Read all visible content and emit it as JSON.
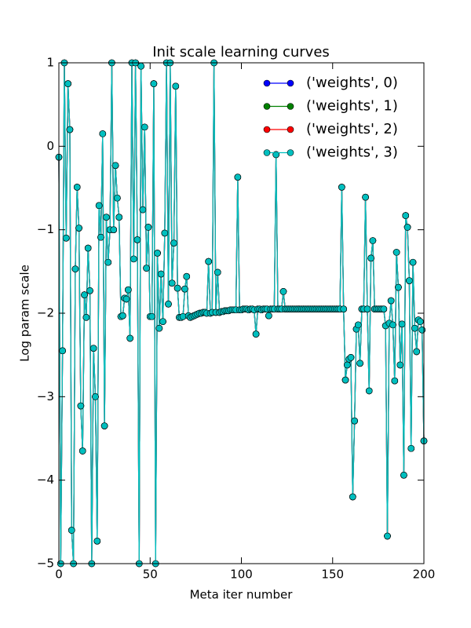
{
  "chart_data": {
    "type": "line",
    "title": "Init scale learning curves",
    "x_label": "Meta iter number",
    "y_label": "Log param scale",
    "xlim": [
      0,
      200
    ],
    "ylim": [
      -5,
      1
    ],
    "xticks": [
      0,
      50,
      100,
      150,
      200
    ],
    "yticks": [
      {
        "value": -5,
        "label": "−5"
      },
      {
        "value": -4,
        "label": "−4"
      },
      {
        "value": -3,
        "label": "−3"
      },
      {
        "value": -2,
        "label": "−2"
      },
      {
        "value": -1,
        "label": "−1"
      },
      0,
      1
    ],
    "grid": false,
    "legend": "upper right",
    "x": [
      0,
      1,
      2,
      3,
      4,
      5,
      6,
      7,
      8,
      9,
      10,
      11,
      12,
      13,
      14,
      15,
      16,
      17,
      18,
      19,
      20,
      21,
      22,
      23,
      24,
      25,
      26,
      27,
      28,
      29,
      30,
      31,
      32,
      33,
      34,
      35,
      36,
      37,
      38,
      39,
      40,
      41,
      42,
      43,
      44,
      45,
      46,
      47,
      48,
      49,
      50,
      51,
      52,
      53,
      54,
      55,
      56,
      57,
      58,
      59,
      60,
      61,
      62,
      63,
      64,
      65,
      66,
      67,
      68,
      69,
      70,
      71,
      72,
      73,
      74,
      75,
      76,
      77,
      78,
      79,
      80,
      81,
      82,
      83,
      84,
      85,
      86,
      87,
      88,
      89,
      90,
      91,
      92,
      93,
      94,
      95,
      96,
      97,
      98,
      99,
      100,
      101,
      102,
      103,
      104,
      105,
      106,
      107,
      108,
      109,
      110,
      111,
      112,
      113,
      114,
      115,
      116,
      117,
      118,
      119,
      120,
      121,
      122,
      123,
      124,
      125,
      126,
      127,
      128,
      129,
      130,
      131,
      132,
      133,
      134,
      135,
      136,
      137,
      138,
      139,
      140,
      141,
      142,
      143,
      144,
      145,
      146,
      147,
      148,
      149,
      150,
      151,
      152,
      153,
      154,
      155,
      156,
      157,
      158,
      159,
      160,
      161,
      162,
      163,
      164,
      165,
      166,
      167,
      168,
      169,
      170,
      171,
      172,
      173,
      174,
      175,
      176,
      177,
      178,
      179,
      180,
      181,
      182,
      183,
      184,
      185,
      186,
      187,
      188,
      189,
      190,
      191,
      192,
      193,
      194,
      195,
      196,
      197,
      198,
      199,
      200
    ],
    "series": [
      {
        "name": "('weights', 0)",
        "color": "#0000ff",
        "values": [
          -0.13,
          -5,
          -2.45,
          1,
          -1.1,
          0.75,
          0.2,
          -4.6,
          -5,
          -1.47,
          -0.49,
          -0.98,
          -3.11,
          -3.65,
          -1.78,
          -2.05,
          -1.22,
          -1.73,
          -5,
          -2.42,
          -3.0,
          -4.73,
          -0.71,
          -1.09,
          0.15,
          -3.35,
          -0.85,
          -1.39,
          -1.0,
          1,
          -1.0,
          -0.23,
          -0.62,
          -0.85,
          -2.04,
          -2.03,
          -1.82,
          -1.83,
          -1.72,
          -2.3,
          1,
          -1.35,
          1,
          -1.12,
          -5,
          0.96,
          -0.76,
          0.23,
          -1.46,
          -0.97,
          -2.04,
          -2.04,
          0.75,
          -5,
          -1.28,
          -2.18,
          -1.53,
          -2.1,
          -1.04,
          1,
          -1.89,
          1,
          -1.64,
          -1.16,
          0.72,
          -1.7,
          -2.05,
          -2.05,
          -2.04,
          -1.71,
          -1.56,
          -2.03,
          -2.05,
          -2.04,
          -2.03,
          -2.02,
          -2.01,
          -2.0,
          -2.0,
          -1.99,
          -1.99,
          -2.0,
          -1.38,
          -2.0,
          -1.99,
          1,
          -1.99,
          -1.51,
          -1.99,
          -1.98,
          -1.98,
          -1.97,
          -1.97,
          -1.97,
          -1.96,
          -1.96,
          -1.96,
          -1.96,
          -0.37,
          -1.96,
          -1.96,
          -1.95,
          -1.95,
          -1.95,
          -1.96,
          -1.95,
          -1.95,
          -1.96,
          -2.25,
          -1.95,
          -1.95,
          -1.96,
          -1.95,
          -1.95,
          -1.95,
          -2.03,
          -1.95,
          -1.95,
          -1.95,
          -0.1,
          -1.95,
          -1.95,
          -1.95,
          -1.74,
          -1.95,
          -1.95,
          -1.95,
          -1.95,
          -1.95,
          -1.95,
          -1.95,
          -1.95,
          -1.95,
          -1.95,
          -1.95,
          -1.95,
          -1.95,
          -1.95,
          -1.95,
          -1.95,
          -1.95,
          -1.95,
          -1.95,
          -1.95,
          -1.95,
          -1.95,
          -1.95,
          -1.95,
          -1.95,
          -1.95,
          -1.95,
          -1.95,
          -1.95,
          -1.95,
          -1.95,
          -0.49,
          -1.95,
          -2.8,
          -2.62,
          -2.55,
          -2.53,
          -4.2,
          -3.29,
          -2.19,
          -2.14,
          -2.6,
          -1.95,
          -1.95,
          -0.61,
          -1.95,
          -2.93,
          -1.34,
          -1.13,
          -1.95,
          -1.95,
          -1.95,
          -1.95,
          -1.95,
          -1.95,
          -2.15,
          -4.67,
          -2.12,
          -1.85,
          -2.14,
          -2.81,
          -1.27,
          -1.69,
          -2.62,
          -2.13,
          -3.94,
          -0.83,
          -0.97,
          -1.61,
          -3.62,
          -1.39,
          -2.18,
          -2.46,
          -2.08,
          -2.1,
          -2.2,
          -3.53
        ]
      },
      {
        "name": "('weights', 1)",
        "color": "#008000",
        "values": [
          -0.13,
          -5,
          -2.45,
          1,
          -1.1,
          0.75,
          0.2,
          -4.6,
          -5,
          -1.47,
          -0.49,
          -0.98,
          -3.11,
          -3.65,
          -1.78,
          -2.05,
          -1.22,
          -1.73,
          -5,
          -2.42,
          -3.0,
          -4.73,
          -0.71,
          -1.09,
          0.15,
          -3.35,
          -0.85,
          -1.39,
          -1.0,
          1,
          -1.0,
          -0.23,
          -0.62,
          -0.85,
          -2.04,
          -2.03,
          -1.82,
          -1.83,
          -1.72,
          -2.3,
          1,
          -1.35,
          1,
          -1.12,
          -5,
          0.96,
          -0.76,
          0.23,
          -1.46,
          -0.97,
          -2.04,
          -2.04,
          0.75,
          -5,
          -1.28,
          -2.18,
          -1.53,
          -2.1,
          -1.04,
          1,
          -1.89,
          1,
          -1.64,
          -1.16,
          0.72,
          -1.7,
          -2.05,
          -2.05,
          -2.04,
          -1.71,
          -1.56,
          -2.03,
          -2.05,
          -2.04,
          -2.03,
          -2.02,
          -2.01,
          -2.0,
          -2.0,
          -1.99,
          -1.99,
          -2.0,
          -1.38,
          -2.0,
          -1.99,
          1,
          -1.99,
          -1.51,
          -1.99,
          -1.98,
          -1.98,
          -1.97,
          -1.97,
          -1.97,
          -1.96,
          -1.96,
          -1.96,
          -1.96,
          -0.37,
          -1.96,
          -1.96,
          -1.95,
          -1.95,
          -1.95,
          -1.96,
          -1.95,
          -1.95,
          -1.96,
          -2.25,
          -1.95,
          -1.95,
          -1.96,
          -1.95,
          -1.95,
          -1.95,
          -2.03,
          -1.95,
          -1.95,
          -1.95,
          -0.1,
          -1.95,
          -1.95,
          -1.95,
          -1.74,
          -1.95,
          -1.95,
          -1.95,
          -1.95,
          -1.95,
          -1.95,
          -1.95,
          -1.95,
          -1.95,
          -1.95,
          -1.95,
          -1.95,
          -1.95,
          -1.95,
          -1.95,
          -1.95,
          -1.95,
          -1.95,
          -1.95,
          -1.95,
          -1.95,
          -1.95,
          -1.95,
          -1.95,
          -1.95,
          -1.95,
          -1.95,
          -1.95,
          -1.95,
          -1.95,
          -1.95,
          -0.49,
          -1.95,
          -2.8,
          -2.62,
          -2.55,
          -2.53,
          -4.2,
          -3.29,
          -2.19,
          -2.14,
          -2.6,
          -1.95,
          -1.95,
          -0.61,
          -1.95,
          -2.93,
          -1.34,
          -1.13,
          -1.95,
          -1.95,
          -1.95,
          -1.95,
          -1.95,
          -1.95,
          -2.15,
          -4.67,
          -2.12,
          -1.85,
          -2.14,
          -2.81,
          -1.27,
          -1.69,
          -2.62,
          -2.13,
          -3.94,
          -0.83,
          -0.97,
          -1.61,
          -3.62,
          -1.39,
          -2.18,
          -2.46,
          -2.08,
          -2.1,
          -2.2,
          -3.53
        ]
      },
      {
        "name": "('weights', 2)",
        "color": "#ff0000",
        "values": [
          -0.13,
          -5,
          -2.45,
          1,
          -1.1,
          0.75,
          0.2,
          -4.6,
          -5,
          -1.47,
          -0.49,
          -0.98,
          -3.11,
          -3.65,
          -1.78,
          -2.05,
          -1.22,
          -1.73,
          -5,
          -2.42,
          -3.0,
          -4.73,
          -0.71,
          -1.09,
          0.15,
          -3.35,
          -0.85,
          -1.39,
          -1.0,
          1,
          -1.0,
          -0.23,
          -0.62,
          -0.85,
          -2.04,
          -2.03,
          -1.82,
          -1.83,
          -1.72,
          -2.3,
          1,
          -1.35,
          1,
          -1.12,
          -5,
          0.96,
          -0.76,
          0.23,
          -1.46,
          -0.97,
          -2.04,
          -2.04,
          0.75,
          -5,
          -1.28,
          -2.18,
          -1.53,
          -2.1,
          -1.04,
          1,
          -1.89,
          1,
          -1.64,
          -1.16,
          0.72,
          -1.7,
          -2.05,
          -2.05,
          -2.04,
          -1.71,
          -1.56,
          -2.03,
          -2.05,
          -2.04,
          -2.03,
          -2.02,
          -2.01,
          -2.0,
          -2.0,
          -1.99,
          -1.99,
          -2.0,
          -1.38,
          -2.0,
          -1.99,
          1,
          -1.99,
          -1.51,
          -1.99,
          -1.98,
          -1.98,
          -1.97,
          -1.97,
          -1.97,
          -1.96,
          -1.96,
          -1.96,
          -1.96,
          -0.37,
          -1.96,
          -1.96,
          -1.95,
          -1.95,
          -1.95,
          -1.96,
          -1.95,
          -1.95,
          -1.96,
          -2.25,
          -1.95,
          -1.95,
          -1.96,
          -1.95,
          -1.95,
          -1.95,
          -2.03,
          -1.95,
          -1.95,
          -1.95,
          -0.1,
          -1.95,
          -1.95,
          -1.95,
          -1.74,
          -1.95,
          -1.95,
          -1.95,
          -1.95,
          -1.95,
          -1.95,
          -1.95,
          -1.95,
          -1.95,
          -1.95,
          -1.95,
          -1.95,
          -1.95,
          -1.95,
          -1.95,
          -1.95,
          -1.95,
          -1.95,
          -1.95,
          -1.95,
          -1.95,
          -1.95,
          -1.95,
          -1.95,
          -1.95,
          -1.95,
          -1.95,
          -1.95,
          -1.95,
          -1.95,
          -1.95,
          -0.49,
          -1.95,
          -2.8,
          -2.62,
          -2.55,
          -2.53,
          -4.2,
          -3.29,
          -2.19,
          -2.14,
          -2.6,
          -1.95,
          -1.95,
          -0.61,
          -1.95,
          -2.93,
          -1.34,
          -1.13,
          -1.95,
          -1.95,
          -1.95,
          -1.95,
          -1.95,
          -1.95,
          -2.15,
          -4.67,
          -2.12,
          -1.85,
          -2.14,
          -2.81,
          -1.27,
          -1.69,
          -2.62,
          -2.13,
          -3.94,
          -0.83,
          -0.97,
          -1.61,
          -3.62,
          -1.39,
          -2.18,
          -2.46,
          -2.08,
          -2.1,
          -2.2,
          -3.53
        ]
      },
      {
        "name": "('weights', 3)",
        "color": "#00bfbf",
        "values": [
          -0.13,
          -5,
          -2.45,
          1,
          -1.1,
          0.75,
          0.2,
          -4.6,
          -5,
          -1.47,
          -0.49,
          -0.98,
          -3.11,
          -3.65,
          -1.78,
          -2.05,
          -1.22,
          -1.73,
          -5,
          -2.42,
          -3.0,
          -4.73,
          -0.71,
          -1.09,
          0.15,
          -3.35,
          -0.85,
          -1.39,
          -1.0,
          1,
          -1.0,
          -0.23,
          -0.62,
          -0.85,
          -2.04,
          -2.03,
          -1.82,
          -1.83,
          -1.72,
          -2.3,
          1,
          -1.35,
          1,
          -1.12,
          -5,
          0.96,
          -0.76,
          0.23,
          -1.46,
          -0.97,
          -2.04,
          -2.04,
          0.75,
          -5,
          -1.28,
          -2.18,
          -1.53,
          -2.1,
          -1.04,
          1,
          -1.89,
          1,
          -1.64,
          -1.16,
          0.72,
          -1.7,
          -2.05,
          -2.05,
          -2.04,
          -1.71,
          -1.56,
          -2.03,
          -2.05,
          -2.04,
          -2.03,
          -2.02,
          -2.01,
          -2.0,
          -2.0,
          -1.99,
          -1.99,
          -2.0,
          -1.38,
          -2.0,
          -1.99,
          1,
          -1.99,
          -1.51,
          -1.99,
          -1.98,
          -1.98,
          -1.97,
          -1.97,
          -1.97,
          -1.96,
          -1.96,
          -1.96,
          -1.96,
          -0.37,
          -1.96,
          -1.96,
          -1.95,
          -1.95,
          -1.95,
          -1.96,
          -1.95,
          -1.95,
          -1.96,
          -2.25,
          -1.95,
          -1.95,
          -1.96,
          -1.95,
          -1.95,
          -1.95,
          -2.03,
          -1.95,
          -1.95,
          -1.95,
          -0.1,
          -1.95,
          -1.95,
          -1.95,
          -1.74,
          -1.95,
          -1.95,
          -1.95,
          -1.95,
          -1.95,
          -1.95,
          -1.95,
          -1.95,
          -1.95,
          -1.95,
          -1.95,
          -1.95,
          -1.95,
          -1.95,
          -1.95,
          -1.95,
          -1.95,
          -1.95,
          -1.95,
          -1.95,
          -1.95,
          -1.95,
          -1.95,
          -1.95,
          -1.95,
          -1.95,
          -1.95,
          -1.95,
          -1.95,
          -1.95,
          -1.95,
          -0.49,
          -1.95,
          -2.8,
          -2.62,
          -2.55,
          -2.53,
          -4.2,
          -3.29,
          -2.19,
          -2.14,
          -2.6,
          -1.95,
          -1.95,
          -0.61,
          -1.95,
          -2.93,
          -1.34,
          -1.13,
          -1.95,
          -1.95,
          -1.95,
          -1.95,
          -1.95,
          -1.95,
          -2.15,
          -4.67,
          -2.12,
          -1.85,
          -2.14,
          -2.81,
          -1.27,
          -1.69,
          -2.62,
          -2.13,
          -3.94,
          -0.83,
          -0.97,
          -1.61,
          -3.62,
          -1.39,
          -2.18,
          -2.46,
          -2.08,
          -2.1,
          -2.2,
          -3.53
        ]
      }
    ]
  }
}
